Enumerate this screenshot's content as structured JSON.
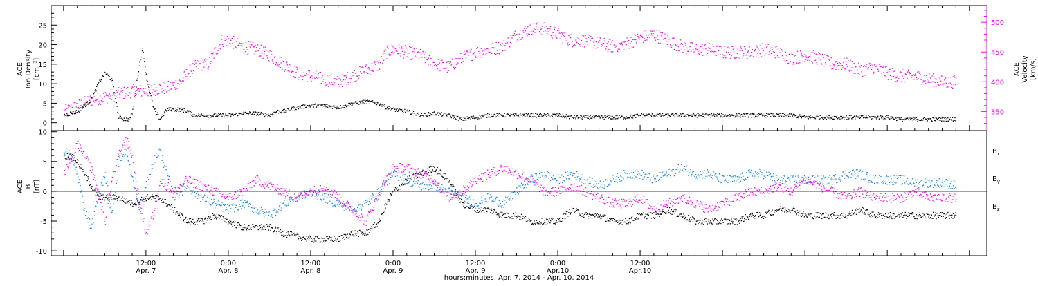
{
  "chart_data": [
    {
      "type": "scatter",
      "panel": "top",
      "y_left_label": [
        "ACE",
        "Ion Density",
        "[cm⁻³]"
      ],
      "y_right_label": [
        "ACE",
        "Velocity",
        "[km/s]"
      ],
      "y_left_ticks": [
        "0",
        "5",
        "10",
        "15",
        "20",
        "25"
      ],
      "y_right_ticks": [
        "350",
        "400",
        "450",
        "500"
      ],
      "ylim_left": [
        -2,
        30
      ],
      "ylim_right": [
        318,
        528
      ],
      "colors": {
        "density": "#000000",
        "velocity": "#ff00ff"
      },
      "series": [
        {
          "key": "density",
          "axis": "left",
          "hours": [
            0,
            2,
            4,
            5,
            6,
            7,
            8,
            8.8,
            9.6,
            10,
            11,
            11.5,
            12,
            13,
            14,
            15,
            16,
            17,
            18,
            19,
            20,
            21,
            22,
            23,
            24,
            26,
            28,
            30,
            31,
            32,
            34,
            36,
            38,
            40,
            42,
            44,
            46,
            47,
            48,
            50,
            52,
            54,
            56,
            58,
            60,
            62,
            64,
            66,
            68,
            70,
            72,
            74,
            76,
            78,
            80,
            82,
            84,
            86,
            88,
            90,
            92,
            94,
            96,
            98,
            100,
            102,
            104,
            106,
            108,
            110,
            112,
            114,
            116,
            118,
            120,
            122,
            124,
            126,
            128,
            130
          ],
          "values": [
            2,
            3,
            6,
            10,
            13,
            11,
            1.5,
            1,
            1,
            3,
            15,
            19,
            12,
            4,
            1,
            3.5,
            3.5,
            3.5,
            3,
            2,
            2,
            2,
            2,
            2,
            2,
            2.5,
            2.5,
            2,
            3,
            3,
            4,
            4.5,
            4.5,
            4,
            5,
            5.5,
            5,
            4,
            3.5,
            3,
            2,
            2.5,
            2,
            1,
            1.5,
            2,
            2,
            2,
            2,
            2,
            2,
            1.5,
            1.5,
            1.5,
            1.5,
            1.5,
            2,
            2,
            2,
            2,
            2,
            2,
            2,
            2,
            2,
            2,
            2,
            2,
            1.5,
            1.5,
            1.5,
            1.5,
            1.5,
            1.5,
            1.5,
            1,
            1,
            1,
            1,
            1
          ]
        },
        {
          "key": "velocity",
          "axis": "right",
          "hours": [
            0,
            2,
            4,
            6,
            8,
            10,
            12,
            14,
            15,
            16,
            17,
            18,
            19,
            20,
            21,
            22,
            23,
            24,
            26,
            28,
            30,
            32,
            34,
            36,
            38,
            40,
            42,
            44,
            46,
            47,
            48,
            50,
            52,
            54,
            56,
            58,
            60,
            62,
            64,
            66,
            68,
            70,
            72,
            74,
            76,
            78,
            80,
            82,
            84,
            86,
            88,
            90,
            92,
            94,
            96,
            98,
            100,
            102,
            104,
            106,
            108,
            110,
            112,
            114,
            116,
            118,
            120,
            122,
            124,
            126,
            128,
            130
          ],
          "values": [
            350,
            360,
            370,
            375,
            380,
            385,
            385,
            390,
            390,
            395,
            400,
            415,
            425,
            430,
            430,
            450,
            470,
            470,
            460,
            455,
            445,
            430,
            415,
            410,
            405,
            400,
            410,
            420,
            430,
            450,
            455,
            450,
            445,
            430,
            425,
            440,
            450,
            455,
            460,
            480,
            490,
            490,
            480,
            470,
            470,
            465,
            460,
            465,
            475,
            480,
            470,
            460,
            455,
            455,
            450,
            450,
            450,
            455,
            450,
            440,
            445,
            440,
            430,
            430,
            420,
            425,
            415,
            410,
            410,
            405,
            400,
            400
          ]
        }
      ]
    },
    {
      "type": "scatter",
      "panel": "bottom",
      "y_left_label": [
        "ACE",
        "B",
        "[nT]"
      ],
      "y_left_ticks": [
        "-10",
        "-5",
        "0",
        "5",
        "10"
      ],
      "ylim": [
        -10.8,
        10.2
      ],
      "zero_line": true,
      "colors": {
        "Bx": "#000000",
        "By": "#1e88e5",
        "Bz": "#ff00ff"
      },
      "series": [
        {
          "key": "Bx",
          "label_main": "B",
          "label_sub": "x",
          "hours": [
            0,
            1,
            2,
            3,
            4,
            5,
            6,
            8,
            10,
            12,
            14,
            16,
            18,
            20,
            22,
            24,
            26,
            28,
            30,
            32,
            34,
            36,
            38,
            40,
            42,
            44,
            46,
            47,
            48,
            50,
            52,
            54,
            56,
            58,
            60,
            62,
            64,
            66,
            68,
            70,
            72,
            74,
            76,
            78,
            80,
            82,
            84,
            86,
            88,
            90,
            92,
            94,
            96,
            98,
            100,
            102,
            104,
            106,
            108,
            110,
            112,
            114,
            116,
            118,
            120,
            122,
            124,
            126,
            128,
            130
          ],
          "values": [
            6,
            6,
            5,
            3,
            1,
            -1,
            -1,
            -1,
            -2,
            -1,
            -1,
            -3,
            -5,
            -5,
            -4,
            -5,
            -6,
            -6,
            -6,
            -7,
            -7.5,
            -8,
            -8,
            -8,
            -7,
            -7,
            -5,
            -2,
            0,
            2,
            3,
            4,
            2,
            -2,
            -3,
            -3,
            -4,
            -4,
            -5,
            -5,
            -5,
            -3,
            -4,
            -4,
            -5,
            -5,
            -4,
            -4,
            -3,
            -4,
            -5,
            -5,
            -5,
            -5,
            -4,
            -4,
            -3,
            -3,
            -4,
            -4,
            -4,
            -4,
            -3,
            -4,
            -4,
            -4,
            -4,
            -4,
            -4,
            -4
          ]
        },
        {
          "key": "By",
          "label_main": "B",
          "label_sub": "y",
          "hours": [
            0,
            1,
            2,
            3,
            4,
            5,
            6,
            7,
            8,
            9,
            10,
            11,
            12,
            13,
            14,
            16,
            18,
            20,
            22,
            24,
            26,
            28,
            30,
            32,
            34,
            36,
            38,
            40,
            42,
            44,
            46,
            48,
            50,
            52,
            54,
            56,
            58,
            60,
            62,
            64,
            66,
            68,
            70,
            72,
            74,
            76,
            78,
            80,
            82,
            84,
            86,
            88,
            90,
            92,
            94,
            96,
            98,
            100,
            102,
            104,
            106,
            108,
            110,
            112,
            114,
            116,
            118,
            120,
            122,
            124,
            126,
            128,
            130
          ],
          "values": [
            7,
            6,
            3,
            -3,
            -6,
            -1,
            3,
            -4,
            5,
            7,
            2,
            -3,
            1,
            5,
            7,
            -1,
            1,
            -1,
            -2,
            -3,
            -2,
            -3,
            -4,
            -2,
            -1,
            0,
            -1,
            -2,
            -3,
            -2,
            0,
            3,
            2,
            1,
            1,
            0,
            -1,
            -2,
            -1,
            -2,
            0,
            2,
            3,
            2,
            3,
            2,
            1,
            2,
            3,
            3,
            2,
            3,
            4,
            3,
            3,
            2,
            2,
            3,
            3,
            2,
            2,
            2,
            2,
            2,
            3,
            3,
            2,
            2,
            2,
            1.5,
            1.5,
            1.5,
            1
          ]
        },
        {
          "key": "Bz",
          "label_main": "B",
          "label_sub": "z",
          "hours": [
            0,
            1,
            2,
            3,
            4,
            5,
            6,
            7,
            8,
            9,
            10,
            11,
            12,
            13,
            14,
            16,
            18,
            20,
            22,
            24,
            26,
            28,
            30,
            32,
            34,
            36,
            38,
            40,
            42,
            44,
            46,
            48,
            50,
            52,
            54,
            56,
            58,
            60,
            62,
            64,
            66,
            68,
            70,
            72,
            74,
            76,
            78,
            80,
            82,
            84,
            86,
            88,
            90,
            92,
            94,
            96,
            98,
            100,
            102,
            104,
            106,
            108,
            110,
            112,
            114,
            116,
            118,
            120,
            122,
            124,
            126,
            128,
            130
          ],
          "values": [
            3,
            5,
            8,
            6,
            4,
            0,
            -5,
            2,
            6,
            9,
            6,
            -2,
            -7,
            -4,
            2,
            0,
            2,
            1,
            0,
            -1,
            0,
            2,
            1,
            0,
            -1,
            0,
            1,
            -1,
            -3,
            -5,
            0,
            4,
            4,
            3,
            2,
            -1,
            0,
            2,
            3,
            4,
            3,
            2,
            0,
            0,
            1,
            0,
            -1,
            -2,
            -2,
            -1,
            -3,
            -2,
            -1,
            -2,
            -3,
            -2,
            -1,
            0,
            0,
            1,
            0,
            2,
            1,
            0,
            -1,
            0,
            -1,
            -1,
            -1,
            0,
            -1,
            -1,
            -1
          ]
        }
      ]
    }
  ],
  "x_axis": {
    "ticks": [
      {
        "time": "12:00",
        "day": "Apr. 7"
      },
      {
        "time": "0:00",
        "day": "Apr. 8"
      },
      {
        "time": "12:00",
        "day": "Apr. 8"
      },
      {
        "time": "0:00",
        "day": "Apr. 9"
      },
      {
        "time": "12:00",
        "day": "Apr. 9"
      },
      {
        "time": "0:00",
        "day": "Apr.10"
      },
      {
        "time": "12:00",
        "day": "Apr.10"
      }
    ],
    "title": "hours:minutes, Apr.  7, 2014 - Apr. 10, 2014",
    "xlim_hours": [
      -1.8,
      134.5
    ]
  }
}
